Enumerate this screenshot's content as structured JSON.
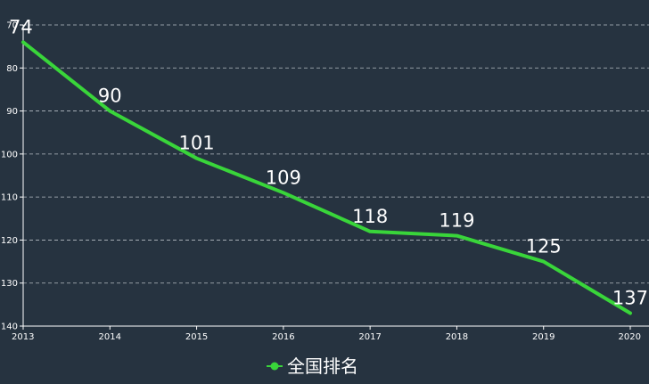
{
  "chart_data": {
    "type": "line",
    "x": [
      "2013",
      "2014",
      "2015",
      "2016",
      "2017",
      "2018",
      "2019",
      "2020"
    ],
    "series": [
      {
        "name": "全国排名",
        "values": [
          74,
          90,
          101,
          109,
          118,
          119,
          125,
          137
        ]
      }
    ],
    "y_ticks": [
      70,
      80,
      90,
      100,
      110,
      120,
      130,
      140
    ],
    "ylim": [
      70,
      140
    ],
    "y_inverted": true,
    "grid": true,
    "legend_position": "bottom-center",
    "colors": {
      "background": "#263340",
      "line": "#39d53a",
      "grid": "#cfd6dc",
      "text": "#ffffff"
    }
  }
}
